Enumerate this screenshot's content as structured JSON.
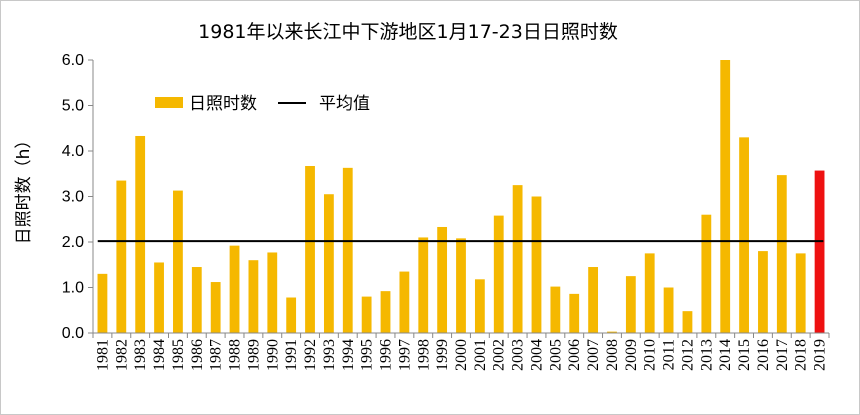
{
  "chart_data": {
    "type": "bar",
    "title": "1981年以来长江中下游地区1月17-23日日照时数",
    "ylabel": "日照时数（h）",
    "xlabel": "",
    "ylim": [
      0,
      6
    ],
    "yticks": [
      "0.0",
      "1.0",
      "2.0",
      "3.0",
      "4.0",
      "5.0",
      "6.0"
    ],
    "grid": false,
    "legend_position": "top-left",
    "categories": [
      "1981",
      "1982",
      "1983",
      "1984",
      "1985",
      "1986",
      "1987",
      "1988",
      "1989",
      "1990",
      "1991",
      "1992",
      "1993",
      "1994",
      "1995",
      "1996",
      "1997",
      "1998",
      "1999",
      "2000",
      "2001",
      "2002",
      "2003",
      "2004",
      "2005",
      "2006",
      "2007",
      "2008",
      "2009",
      "2010",
      "2011",
      "2012",
      "2013",
      "2014",
      "2015",
      "2016",
      "2017",
      "2018",
      "2019"
    ],
    "series": [
      {
        "name": "日照时数",
        "color": "#f5b800",
        "highlight_color": "#ee1111",
        "highlight_category": "2019",
        "values": [
          1.3,
          3.35,
          4.33,
          1.55,
          3.13,
          1.45,
          1.12,
          1.92,
          1.6,
          1.77,
          0.78,
          3.67,
          3.05,
          3.63,
          0.8,
          0.92,
          1.35,
          2.1,
          2.33,
          2.08,
          1.18,
          2.58,
          3.25,
          3.0,
          1.02,
          0.86,
          1.45,
          0.03,
          1.25,
          1.75,
          1.0,
          0.48,
          2.6,
          6.0,
          4.3,
          1.8,
          3.47,
          1.75,
          3.57
        ]
      }
    ],
    "reference_line": {
      "name": "平均值",
      "value": 2.02,
      "color": "#000000"
    }
  }
}
